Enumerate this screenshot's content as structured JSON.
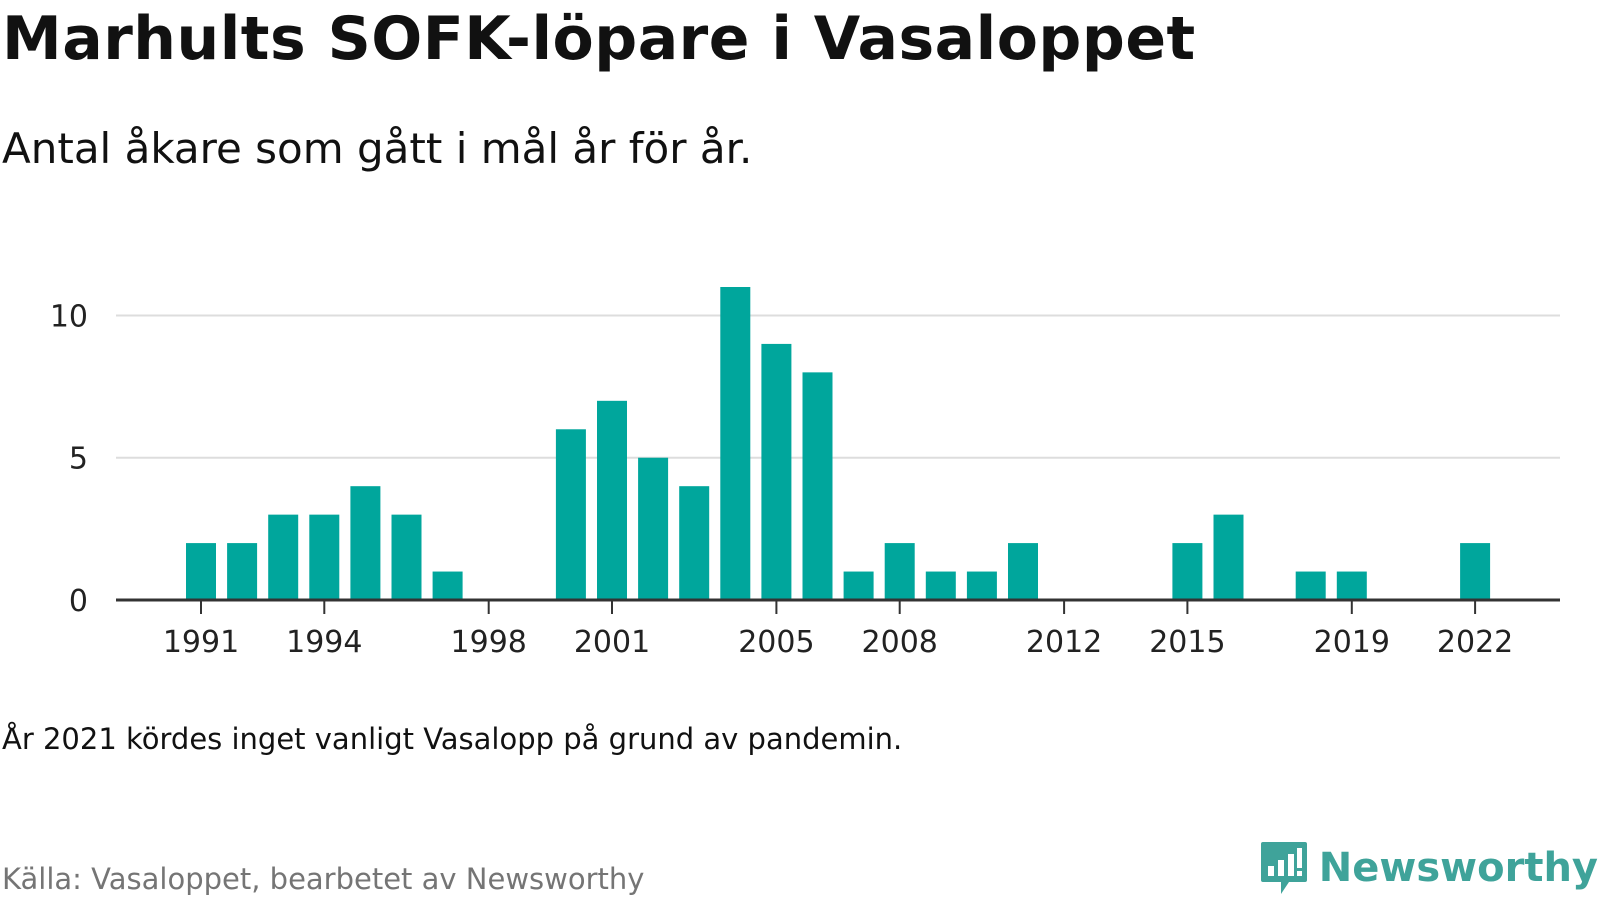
{
  "title": "Marhults SOFK-löpare i Vasaloppet",
  "subtitle": "Antal åkare som gått i mål år för år.",
  "note": "År 2021 kördes inget vanligt Vasalopp på grund av pandemin.",
  "source": "Källa: Vasaloppet, bearbetet av Newsworthy",
  "brand": {
    "name": "Newsworthy",
    "icon": "newsworthy-logo-icon",
    "color": "#3fa39a"
  },
  "colors": {
    "bar": "#00a69c",
    "grid": "#dddddd",
    "axis": "#333333"
  },
  "chart_data": {
    "type": "bar",
    "x": [
      1991,
      1992,
      1993,
      1994,
      1995,
      1996,
      1997,
      1998,
      1999,
      2000,
      2001,
      2002,
      2003,
      2004,
      2005,
      2006,
      2007,
      2008,
      2009,
      2010,
      2011,
      2012,
      2013,
      2014,
      2015,
      2016,
      2017,
      2018,
      2019,
      2020,
      2021,
      2022
    ],
    "values": [
      2,
      2,
      3,
      3,
      4,
      3,
      1,
      0,
      0,
      6,
      7,
      5,
      4,
      11,
      9,
      8,
      1,
      2,
      1,
      1,
      2,
      0,
      0,
      0,
      2,
      3,
      0,
      1,
      1,
      0,
      0,
      2
    ],
    "x_ticks": [
      1991,
      1994,
      1998,
      2001,
      2005,
      2008,
      2012,
      2015,
      2019,
      2022
    ],
    "y_ticks": [
      0,
      5,
      10
    ],
    "ylim": [
      0,
      11
    ],
    "xlabel": "",
    "ylabel": "",
    "grid": true,
    "legend": "none"
  }
}
